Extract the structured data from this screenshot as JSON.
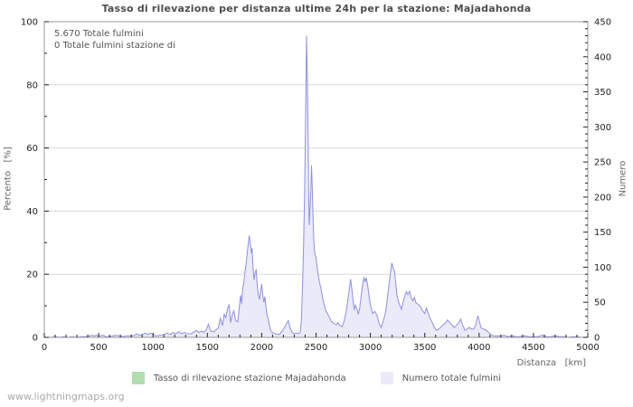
{
  "title": "Tasso di rilevazione per distanza ultime 24h per la stazione: Majadahonda",
  "annotations": {
    "line1": "5.670 Totale fulmini",
    "line2": "0 Totale fulmini stazione di"
  },
  "watermark": "www.lightningmaps.org",
  "legend": [
    {
      "label": "Tasso di rilevazione stazione Majadahonda",
      "color": "#b2dcb2"
    },
    {
      "label": "Numero totale fulmini",
      "color": "#eaeaf8"
    }
  ],
  "colors": {
    "grid": "#d9d9d9",
    "border": "#9a9a9a",
    "tick": "#222222",
    "area_fill": "#eaeaf8",
    "area_line": "#9090de",
    "station_line": "#b2dcb2"
  },
  "chart_data": {
    "type": "area",
    "title": "Tasso di rilevazione per distanza ultime 24h per la stazione: Majadahonda",
    "xlabel": "Distanza   [km]",
    "ylabel_left": "Percento   [%]",
    "ylabel_right": "Numero",
    "x_range": [
      0,
      5000
    ],
    "y_left_range": [
      0,
      100
    ],
    "y_right_range": [
      0,
      450
    ],
    "x_ticks": [
      0,
      500,
      1000,
      1500,
      2000,
      2500,
      3000,
      3500,
      4000,
      4500,
      5000
    ],
    "x_minor_step": 100,
    "y_left_ticks": [
      0,
      20,
      40,
      60,
      80,
      100
    ],
    "y_left_minor_step": 10,
    "y_right_ticks": [
      0,
      50,
      100,
      150,
      200,
      250,
      300,
      350,
      400,
      450
    ],
    "y_right_minor_step": 10,
    "grid": "horizontal lines at left-axis major ticks only",
    "legend_position": "bottom center",
    "series": [
      {
        "name": "Tasso di rilevazione stazione Majadahonda",
        "axis": "left",
        "style": "line",
        "note": "flat at 0% for all distances (station reported 0 strikes)",
        "points": [
          [
            0,
            0
          ],
          [
            5000,
            0
          ]
        ]
      },
      {
        "name": "Numero totale fulmini",
        "axis": "right",
        "style": "area",
        "points": [
          [
            0,
            0
          ],
          [
            60,
            0
          ],
          [
            100,
            1
          ],
          [
            140,
            0
          ],
          [
            180,
            1
          ],
          [
            220,
            0
          ],
          [
            260,
            1
          ],
          [
            300,
            0
          ],
          [
            340,
            1
          ],
          [
            380,
            1
          ],
          [
            420,
            2
          ],
          [
            440,
            3
          ],
          [
            460,
            2
          ],
          [
            480,
            3
          ],
          [
            510,
            2
          ],
          [
            540,
            3
          ],
          [
            570,
            1
          ],
          [
            600,
            1
          ],
          [
            630,
            2
          ],
          [
            660,
            3
          ],
          [
            690,
            2
          ],
          [
            720,
            1
          ],
          [
            760,
            2
          ],
          [
            800,
            2
          ],
          [
            830,
            3
          ],
          [
            850,
            5
          ],
          [
            870,
            3
          ],
          [
            900,
            4
          ],
          [
            930,
            6
          ],
          [
            950,
            4
          ],
          [
            975,
            6
          ],
          [
            1000,
            4
          ],
          [
            1030,
            2
          ],
          [
            1060,
            3
          ],
          [
            1100,
            4
          ],
          [
            1130,
            6
          ],
          [
            1160,
            4
          ],
          [
            1185,
            7
          ],
          [
            1210,
            5
          ],
          [
            1235,
            8
          ],
          [
            1260,
            5
          ],
          [
            1290,
            7
          ],
          [
            1320,
            5
          ],
          [
            1350,
            5
          ],
          [
            1380,
            8
          ],
          [
            1400,
            10
          ],
          [
            1420,
            7
          ],
          [
            1445,
            9
          ],
          [
            1465,
            7
          ],
          [
            1490,
            11
          ],
          [
            1510,
            19
          ],
          [
            1530,
            9
          ],
          [
            1560,
            8
          ],
          [
            1580,
            11
          ],
          [
            1600,
            13
          ],
          [
            1620,
            27
          ],
          [
            1640,
            17
          ],
          [
            1655,
            33
          ],
          [
            1670,
            28
          ],
          [
            1685,
            40
          ],
          [
            1700,
            47
          ],
          [
            1715,
            21
          ],
          [
            1730,
            33
          ],
          [
            1745,
            38
          ],
          [
            1760,
            24
          ],
          [
            1780,
            22
          ],
          [
            1795,
            45
          ],
          [
            1805,
            60
          ],
          [
            1815,
            48
          ],
          [
            1825,
            70
          ],
          [
            1835,
            78
          ],
          [
            1845,
            92
          ],
          [
            1855,
            103
          ],
          [
            1865,
            118
          ],
          [
            1875,
            132
          ],
          [
            1885,
            145
          ],
          [
            1895,
            135
          ],
          [
            1905,
            120
          ],
          [
            1912,
            127
          ],
          [
            1920,
            100
          ],
          [
            1930,
            82
          ],
          [
            1940,
            93
          ],
          [
            1950,
            96
          ],
          [
            1960,
            72
          ],
          [
            1970,
            60
          ],
          [
            1980,
            54
          ],
          [
            1990,
            66
          ],
          [
            2000,
            76
          ],
          [
            2010,
            60
          ],
          [
            2020,
            50
          ],
          [
            2030,
            58
          ],
          [
            2040,
            42
          ],
          [
            2050,
            32
          ],
          [
            2060,
            26
          ],
          [
            2070,
            18
          ],
          [
            2080,
            11
          ],
          [
            2090,
            8
          ],
          [
            2110,
            6
          ],
          [
            2130,
            5
          ],
          [
            2160,
            4
          ],
          [
            2190,
            9
          ],
          [
            2210,
            14
          ],
          [
            2230,
            20
          ],
          [
            2245,
            24
          ],
          [
            2260,
            14
          ],
          [
            2280,
            7
          ],
          [
            2300,
            5
          ],
          [
            2320,
            6
          ],
          [
            2340,
            5
          ],
          [
            2355,
            8
          ],
          [
            2365,
            25
          ],
          [
            2375,
            70
          ],
          [
            2385,
            130
          ],
          [
            2395,
            210
          ],
          [
            2405,
            330
          ],
          [
            2413,
            430
          ],
          [
            2420,
            370
          ],
          [
            2427,
            290
          ],
          [
            2433,
            200
          ],
          [
            2438,
            160
          ],
          [
            2445,
            185
          ],
          [
            2452,
            210
          ],
          [
            2458,
            245
          ],
          [
            2465,
            215
          ],
          [
            2472,
            175
          ],
          [
            2480,
            135
          ],
          [
            2490,
            117
          ],
          [
            2500,
            115
          ],
          [
            2510,
            100
          ],
          [
            2520,
            90
          ],
          [
            2530,
            80
          ],
          [
            2545,
            70
          ],
          [
            2560,
            56
          ],
          [
            2575,
            46
          ],
          [
            2590,
            38
          ],
          [
            2605,
            34
          ],
          [
            2625,
            28
          ],
          [
            2645,
            22
          ],
          [
            2665,
            20
          ],
          [
            2685,
            18
          ],
          [
            2700,
            21
          ],
          [
            2720,
            17
          ],
          [
            2740,
            15
          ],
          [
            2760,
            24
          ],
          [
            2780,
            40
          ],
          [
            2800,
            62
          ],
          [
            2818,
            83
          ],
          [
            2830,
            68
          ],
          [
            2842,
            50
          ],
          [
            2852,
            39
          ],
          [
            2862,
            46
          ],
          [
            2875,
            42
          ],
          [
            2888,
            33
          ],
          [
            2900,
            40
          ],
          [
            2912,
            55
          ],
          [
            2925,
            72
          ],
          [
            2940,
            85
          ],
          [
            2952,
            80
          ],
          [
            2962,
            85
          ],
          [
            2975,
            74
          ],
          [
            2988,
            58
          ],
          [
            3000,
            46
          ],
          [
            3020,
            34
          ],
          [
            3040,
            37
          ],
          [
            3060,
            32
          ],
          [
            3080,
            20
          ],
          [
            3100,
            14
          ],
          [
            3120,
            24
          ],
          [
            3140,
            36
          ],
          [
            3160,
            60
          ],
          [
            3180,
            86
          ],
          [
            3197,
            106
          ],
          [
            3210,
            99
          ],
          [
            3222,
            94
          ],
          [
            3233,
            78
          ],
          [
            3245,
            60
          ],
          [
            3258,
            51
          ],
          [
            3270,
            46
          ],
          [
            3285,
            40
          ],
          [
            3300,
            50
          ],
          [
            3315,
            58
          ],
          [
            3330,
            65
          ],
          [
            3345,
            61
          ],
          [
            3360,
            66
          ],
          [
            3375,
            57
          ],
          [
            3390,
            52
          ],
          [
            3405,
            57
          ],
          [
            3420,
            49
          ],
          [
            3440,
            47
          ],
          [
            3460,
            44
          ],
          [
            3480,
            38
          ],
          [
            3500,
            34
          ],
          [
            3515,
            42
          ],
          [
            3530,
            36
          ],
          [
            3550,
            27
          ],
          [
            3570,
            21
          ],
          [
            3590,
            14
          ],
          [
            3610,
            10
          ],
          [
            3630,
            12
          ],
          [
            3650,
            15
          ],
          [
            3670,
            18
          ],
          [
            3690,
            20
          ],
          [
            3710,
            25
          ],
          [
            3730,
            21
          ],
          [
            3750,
            18
          ],
          [
            3770,
            14
          ],
          [
            3790,
            17
          ],
          [
            3810,
            20
          ],
          [
            3830,
            26
          ],
          [
            3850,
            17
          ],
          [
            3870,
            10
          ],
          [
            3890,
            12
          ],
          [
            3910,
            14
          ],
          [
            3930,
            12
          ],
          [
            3950,
            12
          ],
          [
            3970,
            18
          ],
          [
            3988,
            31
          ],
          [
            4000,
            24
          ],
          [
            4020,
            13
          ],
          [
            4040,
            12
          ],
          [
            4060,
            11
          ],
          [
            4080,
            8
          ],
          [
            4100,
            5
          ],
          [
            4120,
            3
          ],
          [
            4140,
            2
          ],
          [
            4170,
            2
          ],
          [
            4200,
            2
          ],
          [
            4230,
            3
          ],
          [
            4260,
            1
          ],
          [
            4300,
            2
          ],
          [
            4340,
            1
          ],
          [
            4380,
            1
          ],
          [
            4420,
            2
          ],
          [
            4460,
            1
          ],
          [
            4500,
            1
          ],
          [
            4540,
            1
          ],
          [
            4580,
            3
          ],
          [
            4620,
            1
          ],
          [
            4660,
            1
          ],
          [
            4700,
            2
          ],
          [
            4740,
            1
          ],
          [
            4780,
            1
          ],
          [
            4820,
            0
          ],
          [
            4860,
            1
          ],
          [
            4900,
            1
          ],
          [
            4940,
            0
          ],
          [
            5000,
            0
          ]
        ]
      }
    ]
  }
}
